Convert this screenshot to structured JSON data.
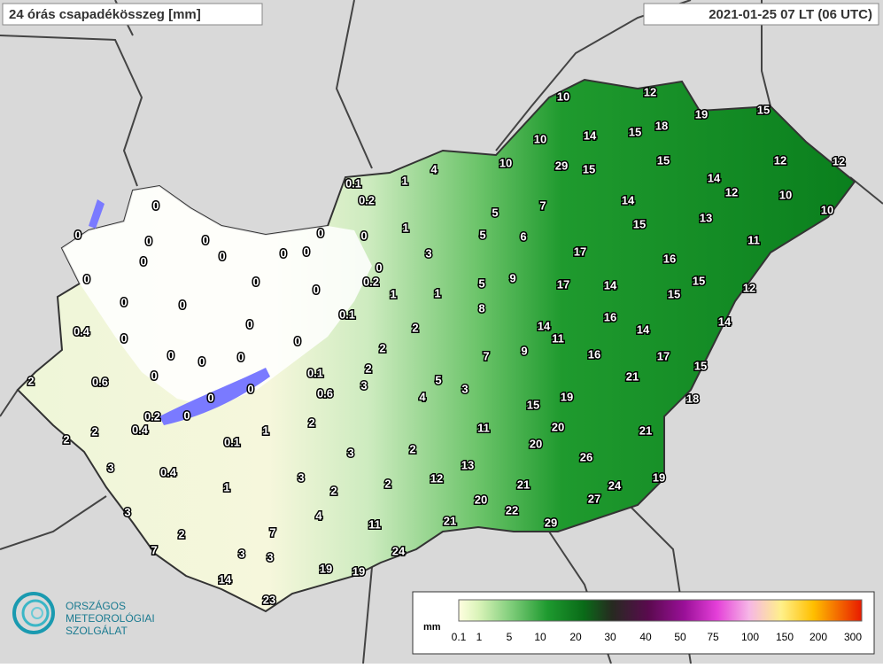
{
  "header": {
    "title": "24 órás csapadékösszeg [mm]",
    "timestamp": "2021-01-25 07 LT (06 UTC)"
  },
  "logo": {
    "lines": [
      "ORSZÁGOS",
      "METEOROLÓGIAI",
      "SZOLGÁLAT"
    ]
  },
  "legend": {
    "unit": "mm",
    "ticks": [
      "0.1",
      "1",
      "5",
      "10",
      "20",
      "30",
      "40",
      "50",
      "75",
      "100",
      "150",
      "200",
      "300"
    ]
  },
  "stations": [
    "10",
    "12",
    "19",
    "15",
    "18",
    "15",
    "14",
    "10",
    "10",
    "29",
    "15",
    "15",
    "12",
    "12",
    "14",
    "12",
    "10",
    "10",
    "4",
    "0.1",
    "1",
    "0.2",
    "7",
    "14",
    "5",
    "13",
    "15",
    "1",
    "5",
    "6",
    "11",
    "0",
    "0",
    "0",
    "0",
    "0",
    "0",
    "0",
    "0",
    "0",
    "3",
    "17",
    "16",
    "0",
    "0",
    "0",
    "0",
    "0.2",
    "1",
    "5",
    "9",
    "17",
    "14",
    "15",
    "15",
    "12",
    "0",
    "1",
    "0",
    "0",
    "8",
    "0.1",
    "16",
    "14",
    "0.4",
    "0",
    "0",
    "2",
    "14",
    "11",
    "14",
    "0",
    "2",
    "9",
    "7",
    "16",
    "17",
    "0",
    "0",
    "0",
    "0",
    "2",
    "15",
    "0.1",
    "21",
    "2",
    "0.6",
    "3",
    "5",
    "0",
    "0",
    "0.6",
    "3",
    "4",
    "19",
    "18",
    "0.2",
    "0",
    "15",
    "2",
    "0.4",
    "11",
    "20",
    "2",
    "1",
    "21",
    "2",
    "0.1",
    "20",
    "3",
    "2",
    "26",
    "13",
    "3",
    "0.4",
    "3",
    "12",
    "19",
    "1",
    "2",
    "2",
    "21",
    "24",
    "20",
    "27",
    "22",
    "3",
    "4",
    "11",
    "21",
    "29",
    "2",
    "7",
    "7",
    "24",
    "3",
    "3",
    "19",
    "19",
    "14",
    "23"
  ]
}
